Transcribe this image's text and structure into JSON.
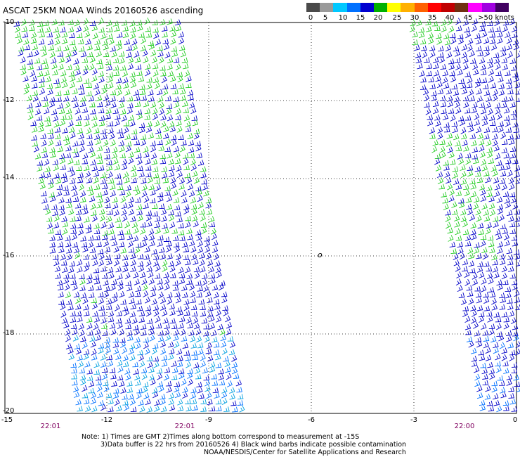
{
  "title": "ASCAT 25KM NOAA Winds 20160526 ascending",
  "legend": {
    "colors": [
      "#4a4a4a",
      "#9a9a9a",
      "#00c8ff",
      "#0070ff",
      "#0000d0",
      "#00b000",
      "#ffff00",
      "#ffb000",
      "#ff6000",
      "#ff0000",
      "#c00000",
      "#703010",
      "#ff00ff",
      "#a000e0",
      "#400060"
    ],
    "labels": [
      "0",
      "5",
      "10",
      "15",
      "20",
      "25",
      "30",
      "35",
      "40",
      "45",
      ">50 knots"
    ]
  },
  "map": {
    "lat_labels": [
      "-10",
      "-12",
      "-14",
      "-16",
      "-18",
      "-20"
    ],
    "lon_labels": [
      "-15",
      "-12",
      "-9",
      "-6",
      "-3",
      "0"
    ],
    "time_labels": [
      "22:01",
      "22:01",
      "22:00"
    ],
    "island_label": "o"
  },
  "notes": {
    "line1": "Note: 1) Times are GMT 2)Times along bottom correspond to measurement at -15S",
    "line2": "3)Data buffer is 22 hrs from 20160526 4) Black wind barbs indicate possible contamination",
    "line3": "NOAA/NESDIS/Center for Satellite Applications and Research"
  }
}
